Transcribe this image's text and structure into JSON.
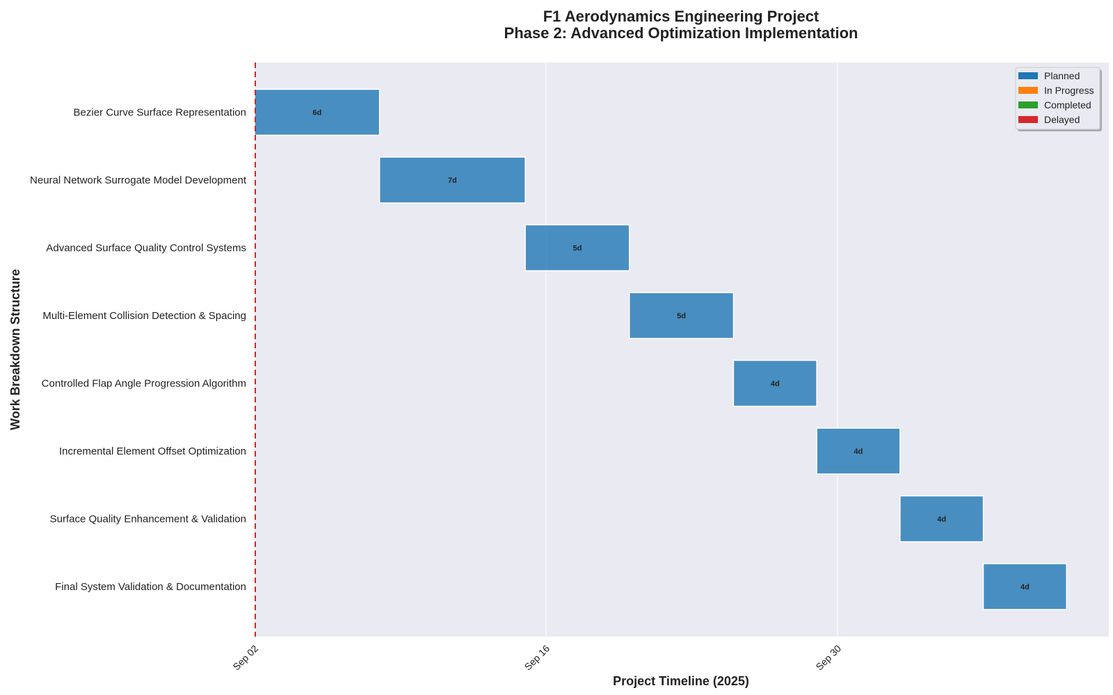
{
  "chart_data": {
    "type": "gantt",
    "title_lines": [
      "F1 Aerodynamics Engineering Project",
      "Phase 2: Advanced Optimization Implementation"
    ],
    "xlabel": "Project Timeline (2025)",
    "ylabel": "Work Breakdown Structure",
    "x_ticks": [
      "Sep 02",
      "Sep 16",
      "Sep 30"
    ],
    "x_ticks_days": [
      0,
      14,
      28
    ],
    "xlim_days": [
      0,
      41
    ],
    "today_marker_day": 0,
    "grid": true,
    "legend_position": "top-right",
    "legend": [
      {
        "label": "Planned",
        "color": "#1f77b4"
      },
      {
        "label": "In Progress",
        "color": "#ff7f0e"
      },
      {
        "label": "Completed",
        "color": "#2ca02c"
      },
      {
        "label": "Delayed",
        "color": "#d62728"
      }
    ],
    "tasks": [
      {
        "name": "Bezier Curve Surface Representation",
        "start_day": 0,
        "duration": 6,
        "label": "6d",
        "status": "Planned"
      },
      {
        "name": "Neural Network Surrogate Model Development",
        "start_day": 6,
        "duration": 7,
        "label": "7d",
        "status": "Planned"
      },
      {
        "name": "Advanced Surface Quality Control Systems",
        "start_day": 13,
        "duration": 5,
        "label": "5d",
        "status": "Planned"
      },
      {
        "name": "Multi-Element Collision Detection & Spacing",
        "start_day": 18,
        "duration": 5,
        "label": "5d",
        "status": "Planned"
      },
      {
        "name": "Controlled Flap Angle Progression Algorithm",
        "start_day": 23,
        "duration": 4,
        "label": "4d",
        "status": "Planned"
      },
      {
        "name": "Incremental Element Offset Optimization",
        "start_day": 27,
        "duration": 4,
        "label": "4d",
        "status": "Planned"
      },
      {
        "name": "Surface Quality Enhancement & Validation",
        "start_day": 31,
        "duration": 4,
        "label": "4d",
        "status": "Planned"
      },
      {
        "name": "Final System Validation & Documentation",
        "start_day": 35,
        "duration": 4,
        "label": "4d",
        "status": "Planned"
      }
    ],
    "colors": {
      "plot_background": "#eaeaf2",
      "bar_fill": "#1f77b4",
      "bar_edge": "#ffffff",
      "today_line": "#e02020"
    }
  }
}
